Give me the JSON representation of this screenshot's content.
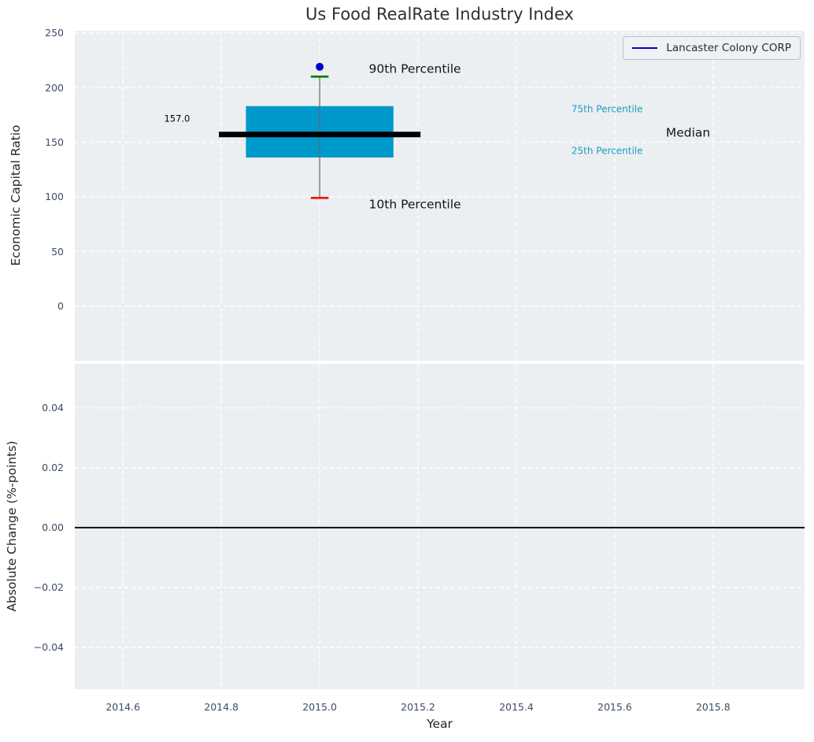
{
  "figure": {
    "title": "Us Food RealRate Industry Index",
    "title_color": "#303030",
    "background": "#ffffff",
    "plot_background": "#eceff1",
    "grid_color": "#ffffff",
    "tick_color": "#3d4c63",
    "axis_label_color": "#262626"
  },
  "legend": {
    "label": "Lancaster Colony CORP",
    "line_color": "#0000cd",
    "position": "upper right"
  },
  "chart_data": [
    {
      "type": "boxplot",
      "title": "Us Food RealRate Industry Index",
      "xlabel": "Year",
      "ylabel": "Economic Capital Ratio",
      "xlim": [
        2014.502,
        2015.986
      ],
      "ylim": [
        -50,
        252
      ],
      "xtick_values": [
        2014.6,
        2014.8,
        2015.0,
        2015.2,
        2015.4,
        2015.6,
        2015.8
      ],
      "xtick_labels": [
        "2014.6",
        "2014.8",
        "2015.0",
        "2015.2",
        "2015.4",
        "2015.6",
        "2015.8"
      ],
      "xticks_visible": false,
      "ytick_values": [
        0,
        50,
        100,
        150,
        200,
        250
      ],
      "ytick_labels": [
        "0",
        "50",
        "100",
        "150",
        "200",
        "250"
      ],
      "grid": {
        "style": "dashed",
        "color": "#ffffff"
      },
      "box": {
        "x": 2015.0,
        "p10": 99,
        "q1": 136,
        "median": 157,
        "q3": 183,
        "p90": 210,
        "median_value_label": "157.0",
        "box_halfwidth": 0.15,
        "median_halfwidth": 0.205,
        "cap_halfwidth": 0.018,
        "box_color": "#0099cc",
        "median_color": "#000000",
        "median_linewidth": 7,
        "whisker_color": "#666666",
        "p90_cap_color": "#008000",
        "p10_cap_color": "#ee1111"
      },
      "company_point": {
        "series": "Lancaster Colony CORP",
        "x": 2015.0,
        "y": 219,
        "color": "#0000cd",
        "radius": 5
      },
      "annotations": [
        {
          "text": "157.0",
          "x": 2014.71,
          "y": 171,
          "color": "#000000",
          "size": 11.5,
          "ha": "center"
        },
        {
          "text": "90th Percentile",
          "x": 2015.1,
          "y": 217,
          "color": "#141414",
          "size": 15.5,
          "ha": "left"
        },
        {
          "text": "10th Percentile",
          "x": 2015.1,
          "y": 93,
          "color": "#141414",
          "size": 15.5,
          "ha": "left"
        },
        {
          "text": "75th Percentile",
          "x": 2015.512,
          "y": 180,
          "color": "#1f9ac9",
          "size": 12,
          "ha": "left"
        },
        {
          "text": "25th Percentile",
          "x": 2015.512,
          "y": 142,
          "color": "#1f9ac9",
          "size": 12,
          "ha": "left"
        },
        {
          "text": "Median",
          "x": 2015.704,
          "y": 158,
          "color": "#141414",
          "size": 15.5,
          "ha": "left"
        }
      ]
    },
    {
      "type": "line",
      "xlabel": "Year",
      "ylabel": "Absolute Change (%-points)",
      "xlim": [
        2014.502,
        2015.986
      ],
      "ylim": [
        -0.054,
        0.0547
      ],
      "xtick_values": [
        2014.6,
        2014.8,
        2015.0,
        2015.2,
        2015.4,
        2015.6,
        2015.8
      ],
      "xtick_labels": [
        "2014.6",
        "2014.8",
        "2015.0",
        "2015.2",
        "2015.4",
        "2015.6",
        "2015.8"
      ],
      "ytick_values": [
        0.04,
        0.02,
        0.0,
        -0.02,
        -0.04
      ],
      "ytick_labels": [
        "0.04",
        "0.02",
        "0.00",
        "−0.02",
        "−0.04"
      ],
      "grid": {
        "style": "dashed",
        "color": "#ffffff"
      },
      "zero_line": {
        "y": 0.0,
        "color": "#000000",
        "width": 1.8
      },
      "series": []
    }
  ]
}
